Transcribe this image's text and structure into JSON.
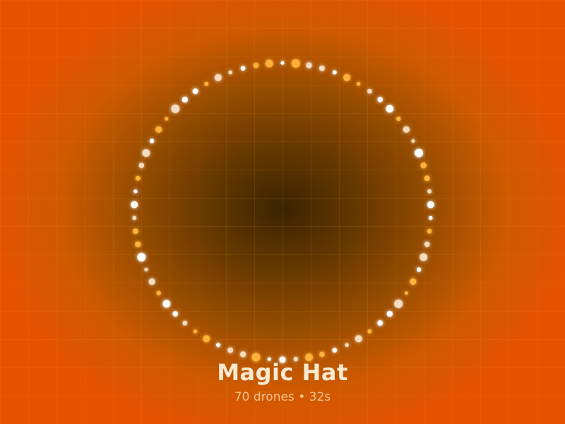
{
  "show": {
    "title": "Magic Hat",
    "meta": "70 drones • 32s"
  },
  "formation": {
    "shape": "ring",
    "drone_count": 70
  },
  "colors": {
    "background": "#e65100",
    "center_glow": "#3a2400",
    "drone_white": "#ffffff",
    "drone_cream": "#f5dcc0",
    "drone_amber": "#ffb13b",
    "title_text": "#fbe9d0",
    "meta_text": "#f6c08a"
  }
}
